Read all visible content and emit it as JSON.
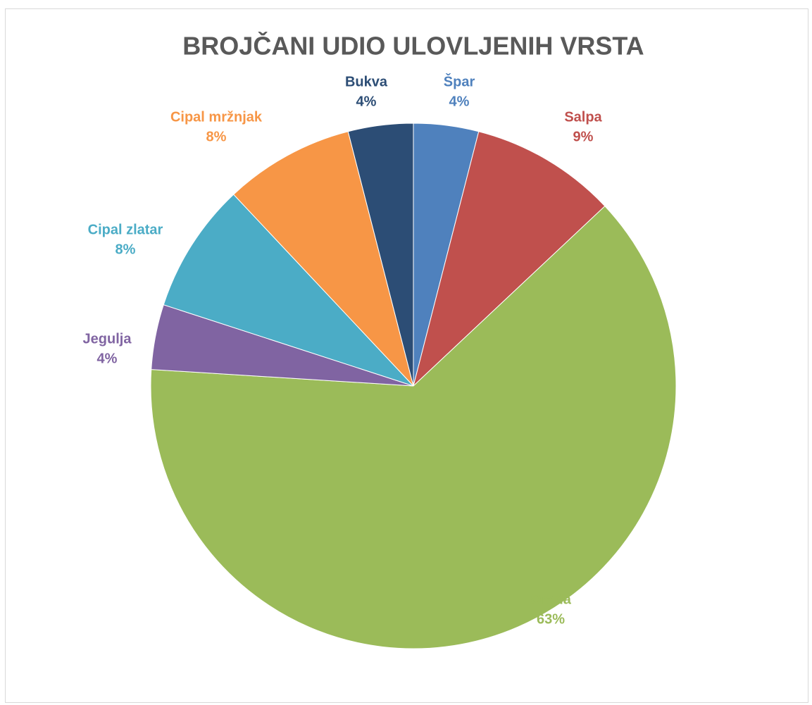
{
  "chart_data": {
    "type": "pie",
    "title": "BROJČANI UDIO ULOVLJENIH VRSTA",
    "categories": [
      "Špar",
      "Salpa",
      "Orada",
      "Jegulja",
      "Cipal zlatar",
      "Cipal mržnjak",
      "Bukva"
    ],
    "values": [
      4,
      9,
      63,
      4,
      8,
      8,
      4
    ],
    "value_labels": [
      "4%",
      "9%",
      "63%",
      "4%",
      "8%",
      "8%",
      "4%"
    ],
    "colors": [
      "#4f81bd",
      "#c0504d",
      "#9bbb59",
      "#8064a2",
      "#4bacc6",
      "#f79646",
      "#2c4d75"
    ]
  }
}
